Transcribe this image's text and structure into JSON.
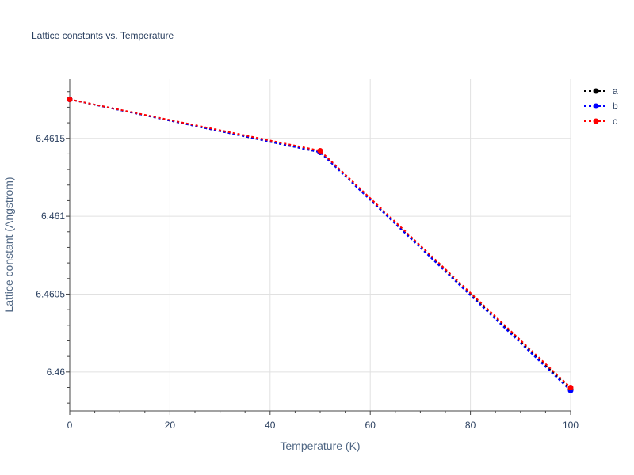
{
  "chart_data": {
    "type": "line",
    "title": "Lattice constants vs. Temperature",
    "xlabel": "Temperature (K)",
    "ylabel": "Lattice constant (Angstrom)",
    "xlim": [
      0,
      100
    ],
    "ylim": [
      6.45975,
      6.46188
    ],
    "x_ticks": [
      0,
      20,
      40,
      60,
      80,
      100
    ],
    "x_tick_labels": [
      "0",
      "20",
      "40",
      "60",
      "80",
      "100"
    ],
    "y_ticks": [
      6.46,
      6.4605,
      6.461,
      6.4615
    ],
    "y_tick_labels": [
      "6.46",
      "6.4605",
      "6.461",
      "6.4615"
    ],
    "grid": true,
    "legend_position": "top-right",
    "x": [
      0,
      50,
      100
    ],
    "series": [
      {
        "name": "a",
        "color": "#000000",
        "values": [
          6.46175,
          6.46141,
          6.45989
        ]
      },
      {
        "name": "b",
        "color": "#0000ff",
        "values": [
          6.46175,
          6.46141,
          6.45988
        ]
      },
      {
        "name": "c",
        "color": "#ff0000",
        "values": [
          6.46175,
          6.46142,
          6.4599
        ]
      }
    ]
  }
}
